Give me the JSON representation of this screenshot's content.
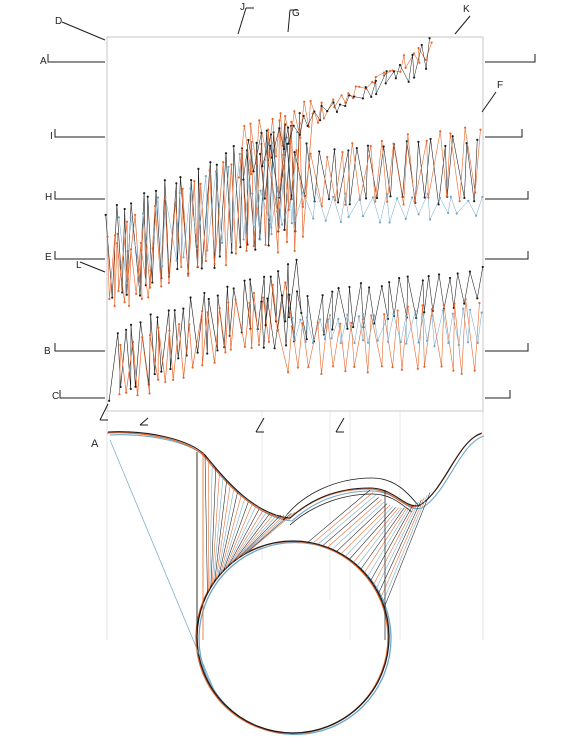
{
  "colors": {
    "paper": "#ffffff",
    "ink_black": "#1c1c1c",
    "ink_orange": "#e8662a",
    "ink_blue": "#6fa6c9",
    "pencil": "#b9b9b9"
  },
  "drawing": {
    "section_labels": [
      "D",
      "A",
      "I",
      "H",
      "E",
      "L",
      "B",
      "C",
      "J",
      "G",
      "K",
      "F"
    ],
    "section_view_label": "A"
  }
}
